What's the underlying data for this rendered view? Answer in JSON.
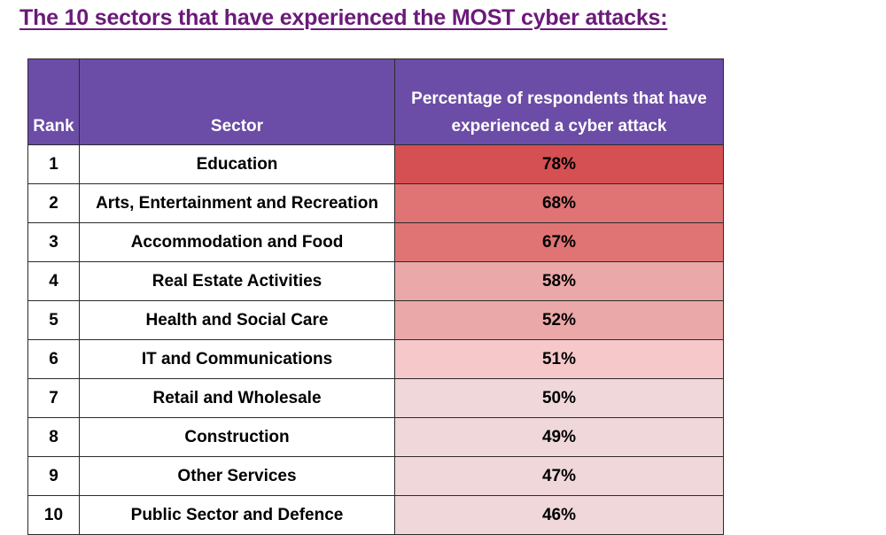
{
  "title": "The 10 sectors that have experienced the MOST cyber attacks:",
  "table": {
    "headers": {
      "rank": "Rank",
      "sector": "Sector",
      "percentage_line1": "Percentage of respondents that have",
      "percentage_line2": "experienced a cyber attack"
    },
    "rows": [
      {
        "rank": "1",
        "sector": "Education",
        "pct": "78%",
        "color": "#d55052"
      },
      {
        "rank": "2",
        "sector": "Arts, Entertainment and Recreation",
        "pct": "68%",
        "color": "#e07474"
      },
      {
        "rank": "3",
        "sector": "Accommodation and Food",
        "pct": "67%",
        "color": "#e07474"
      },
      {
        "rank": "4",
        "sector": "Real Estate Activities",
        "pct": "58%",
        "color": "#eba8a8"
      },
      {
        "rank": "5",
        "sector": "Health and Social Care",
        "pct": "52%",
        "color": "#eba8a8"
      },
      {
        "rank": "6",
        "sector": "IT and Communications",
        "pct": "51%",
        "color": "#f7c8ca"
      },
      {
        "rank": "7",
        "sector": "Retail and Wholesale",
        "pct": "50%",
        "color": "#f0d8da"
      },
      {
        "rank": "8",
        "sector": "Construction",
        "pct": "49%",
        "color": "#f0d8da"
      },
      {
        "rank": "9",
        "sector": "Other Services",
        "pct": "47%",
        "color": "#f0d8da"
      },
      {
        "rank": "10",
        "sector": "Public Sector and Defence",
        "pct": "46%",
        "color": "#f0d8da"
      }
    ]
  },
  "chart_data": {
    "type": "table",
    "title": "The 10 sectors that have experienced the MOST cyber attacks:",
    "columns": [
      "Rank",
      "Sector",
      "Percentage of respondents that have experienced a cyber attack"
    ],
    "rows": [
      [
        1,
        "Education",
        78
      ],
      [
        2,
        "Arts, Entertainment and Recreation",
        68
      ],
      [
        3,
        "Accommodation and Food",
        67
      ],
      [
        4,
        "Real Estate Activities",
        58
      ],
      [
        5,
        "Health and Social Care",
        52
      ],
      [
        6,
        "IT and Communications",
        51
      ],
      [
        7,
        "Retail and Wholesale",
        50
      ],
      [
        8,
        "Construction",
        49
      ],
      [
        9,
        "Other Services",
        47
      ],
      [
        10,
        "Public Sector and Defence",
        46
      ]
    ],
    "value_unit": "%"
  },
  "colors": {
    "title": "#6b1a79",
    "header_bg": "#6b4ca6",
    "header_text": "#ffffff"
  }
}
